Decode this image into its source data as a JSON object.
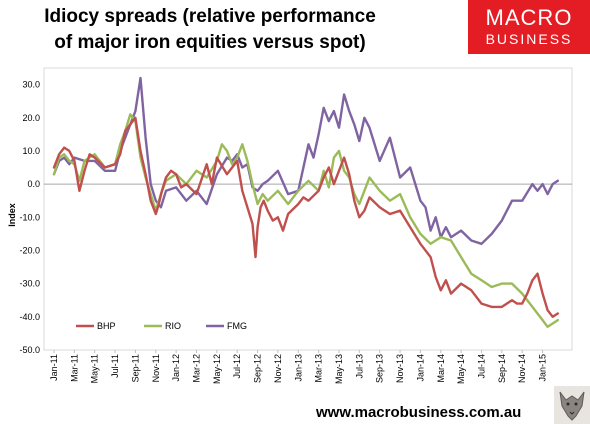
{
  "header": {
    "title_line1": "Idiocy spreads (relative performance",
    "title_line2": "of major iron equities versus spot)"
  },
  "logo": {
    "line1": "MACRO",
    "line2": "BUSINESS"
  },
  "footer": {
    "url": "www.macrobusiness.com.au"
  },
  "colors": {
    "BHP": "#c0504d",
    "RIO": "#9bbb59",
    "FMG": "#8064a2",
    "brand": "#e41c23"
  },
  "chart_data": {
    "type": "line",
    "ylabel": "Index",
    "ylim": [
      -50,
      35
    ],
    "yticks": [
      "-50.0",
      "-40.0",
      "-30.0",
      "-20.0",
      "-10.0",
      "0.0",
      "10.0",
      "20.0",
      "30.0"
    ],
    "ytick_values": [
      -50,
      -40,
      -30,
      -20,
      -10,
      0,
      10,
      20,
      30
    ],
    "xlim": [
      0,
      50.5
    ],
    "xticks": [
      "Jan-11",
      "Mar-11",
      "May-11",
      "Jul-11",
      "Sep-11",
      "Nov-11",
      "Jan-12",
      "Mar-12",
      "May-12",
      "Jul-12",
      "Sep-12",
      "Nov-12",
      "Jan-13",
      "Mar-13",
      "May-13",
      "Jul-13",
      "Sep-13",
      "Nov-13",
      "Jan-14",
      "Mar-14",
      "May-14",
      "Jul-14",
      "Sep-14",
      "Nov-14",
      "Jan-15"
    ],
    "xtick_values": [
      0,
      2,
      4,
      6,
      8,
      10,
      12,
      14,
      16,
      18,
      20,
      22,
      24,
      26,
      28,
      30,
      32,
      34,
      36,
      38,
      40,
      42,
      44,
      46,
      48
    ],
    "x_unit": "months since Jan-11",
    "legend_position": "bottom-left",
    "series": [
      {
        "name": "BHP",
        "x": [
          0,
          0.5,
          1,
          1.5,
          2,
          2.5,
          3,
          3.5,
          4,
          5,
          6,
          6.5,
          7,
          7.5,
          8,
          8.5,
          9,
          9.5,
          10,
          10.3,
          10.6,
          11,
          11.5,
          12,
          12.5,
          13,
          14,
          15,
          15.5,
          16,
          17,
          18,
          18.5,
          19,
          19.5,
          19.8,
          20,
          20.3,
          20.6,
          21,
          21.5,
          22,
          22.5,
          23,
          24,
          24.5,
          25,
          26,
          26.5,
          27,
          27.5,
          28,
          28.5,
          29,
          29.5,
          30,
          30.5,
          31,
          32,
          33,
          34,
          35,
          36,
          37,
          37.5,
          38,
          38.5,
          39,
          40,
          41,
          42,
          43,
          44,
          45,
          45.5,
          46,
          46.5,
          47,
          47.5,
          48,
          48.5,
          49,
          49.5
        ],
        "y": [
          5,
          9,
          11,
          10,
          7,
          -2,
          4,
          9,
          8,
          5,
          6,
          9,
          16,
          18,
          20,
          10,
          3,
          -5,
          -9,
          -6,
          -2,
          2,
          4,
          3,
          -1,
          0,
          -3,
          6,
          0,
          8,
          3,
          7,
          -2,
          -7,
          -12,
          -22,
          -13,
          -7,
          -5,
          -8,
          -11,
          -10,
          -14,
          -9,
          -6,
          -4,
          -5,
          -2,
          2,
          5,
          0,
          4,
          8,
          3,
          -5,
          -10,
          -8,
          -4,
          -7,
          -9,
          -8,
          -13,
          -18,
          -22,
          -28,
          -32,
          -29,
          -33,
          -30,
          -32,
          -36,
          -37,
          -37,
          -35,
          -36,
          -36,
          -33,
          -29,
          -27,
          -33,
          -38,
          -40,
          -39
        ]
      },
      {
        "name": "RIO",
        "x": [
          0,
          0.5,
          1,
          1.5,
          2,
          2.5,
          3,
          4,
          5,
          6,
          6.5,
          7,
          7.5,
          8,
          8.5,
          9,
          9.5,
          10,
          10.5,
          11,
          11.5,
          12,
          13,
          14,
          15,
          16,
          16.5,
          17,
          17.5,
          18,
          18.5,
          19,
          19.5,
          20,
          20.5,
          21,
          22,
          23,
          24,
          25,
          26,
          26.5,
          27,
          27.5,
          28,
          28.5,
          29,
          29.5,
          30,
          30.5,
          31,
          32,
          33,
          34,
          35,
          36,
          37,
          38,
          39,
          40,
          41,
          42,
          43,
          44,
          45,
          46,
          47,
          47.5,
          48,
          48.5,
          49,
          49.5
        ],
        "y": [
          3,
          8,
          9,
          7,
          6,
          1,
          7,
          9,
          5,
          6,
          12,
          16,
          21,
          19,
          8,
          2,
          -3,
          -8,
          -3,
          1,
          2,
          3,
          0,
          4,
          2,
          7,
          12,
          10,
          6,
          8,
          12,
          7,
          0,
          -6,
          -3,
          -5,
          -2,
          -6,
          -2,
          1,
          -2,
          4,
          -1,
          8,
          10,
          4,
          2,
          -3,
          -6,
          -2,
          2,
          -2,
          -5,
          -3,
          -10,
          -15,
          -18,
          -16,
          -17,
          -22,
          -27,
          -29,
          -31,
          -30,
          -30,
          -33,
          -37,
          -39,
          -41,
          -43,
          -42,
          -41
        ]
      },
      {
        "name": "FMG",
        "x": [
          0,
          0.5,
          1,
          1.5,
          2,
          3,
          4,
          5,
          6,
          6.5,
          7,
          7.5,
          8,
          8.5,
          9,
          9.5,
          10,
          10.5,
          11,
          12,
          13,
          14,
          15,
          16,
          17,
          17.5,
          18,
          18.5,
          19,
          19.5,
          20,
          20.5,
          21,
          22,
          23,
          24,
          24.5,
          25,
          25.5,
          26,
          26.5,
          27,
          27.5,
          28,
          28.5,
          29,
          29.5,
          30,
          30.5,
          31,
          32,
          33,
          34,
          35,
          36,
          36.5,
          37,
          37.5,
          38,
          38.5,
          39,
          40,
          41,
          42,
          43,
          44,
          45,
          46,
          47,
          47.5,
          48,
          48.5,
          49,
          49.5
        ],
        "y": [
          3,
          7,
          8,
          6,
          8,
          7,
          7,
          4,
          4,
          10,
          14,
          18,
          22,
          32,
          14,
          0,
          -5,
          -7,
          -2,
          -1,
          -5,
          -2,
          -6,
          3,
          8,
          7,
          9,
          5,
          6,
          -1,
          -2,
          0,
          1,
          4,
          -3,
          -2,
          5,
          12,
          8,
          15,
          23,
          19,
          22,
          17,
          27,
          22,
          18,
          13,
          20,
          17,
          7,
          14,
          2,
          5,
          -5,
          -7,
          -14,
          -10,
          -16,
          -13,
          -16,
          -14,
          -17,
          -18,
          -15,
          -11,
          -5,
          -5,
          0,
          -2,
          0,
          -3,
          0,
          1
        ]
      }
    ]
  }
}
